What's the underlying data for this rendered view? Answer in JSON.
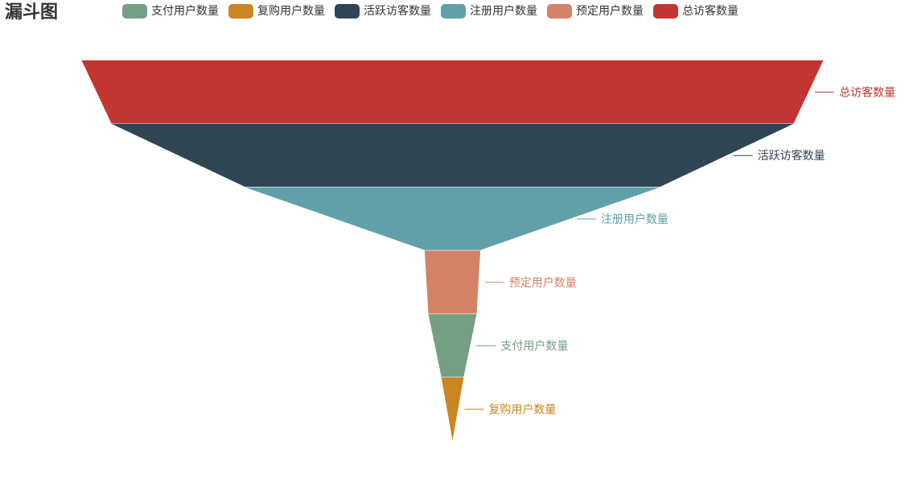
{
  "title": "漏斗图",
  "chart_data": {
    "type": "funnel",
    "title": "漏斗图",
    "sort": "descending",
    "legend_position": "top",
    "grid": false,
    "max": 100,
    "series": [
      {
        "name": "总访客数量",
        "value": 100,
        "color": "#c23531"
      },
      {
        "name": "活跃访客数量",
        "value": 92,
        "color": "#2f4554"
      },
      {
        "name": "注册用户数量",
        "value": 56,
        "color": "#61a0a8"
      },
      {
        "name": "预定用户数量",
        "value": 7.5,
        "color": "#d48265"
      },
      {
        "name": "支付用户数量",
        "value": 6.5,
        "color": "#749f83"
      },
      {
        "name": "复购用户数量",
        "value": 3,
        "color": "#ca8622"
      }
    ],
    "legend": [
      {
        "name": "支付用户数量",
        "color": "#749f83"
      },
      {
        "name": "复购用户数量",
        "color": "#ca8622"
      },
      {
        "name": "活跃访客数量",
        "color": "#2f4554"
      },
      {
        "name": "注册用户数量",
        "color": "#61a0a8"
      },
      {
        "name": "预定用户数量",
        "color": "#d48265"
      },
      {
        "name": "总访客数量",
        "color": "#c23531"
      }
    ]
  }
}
